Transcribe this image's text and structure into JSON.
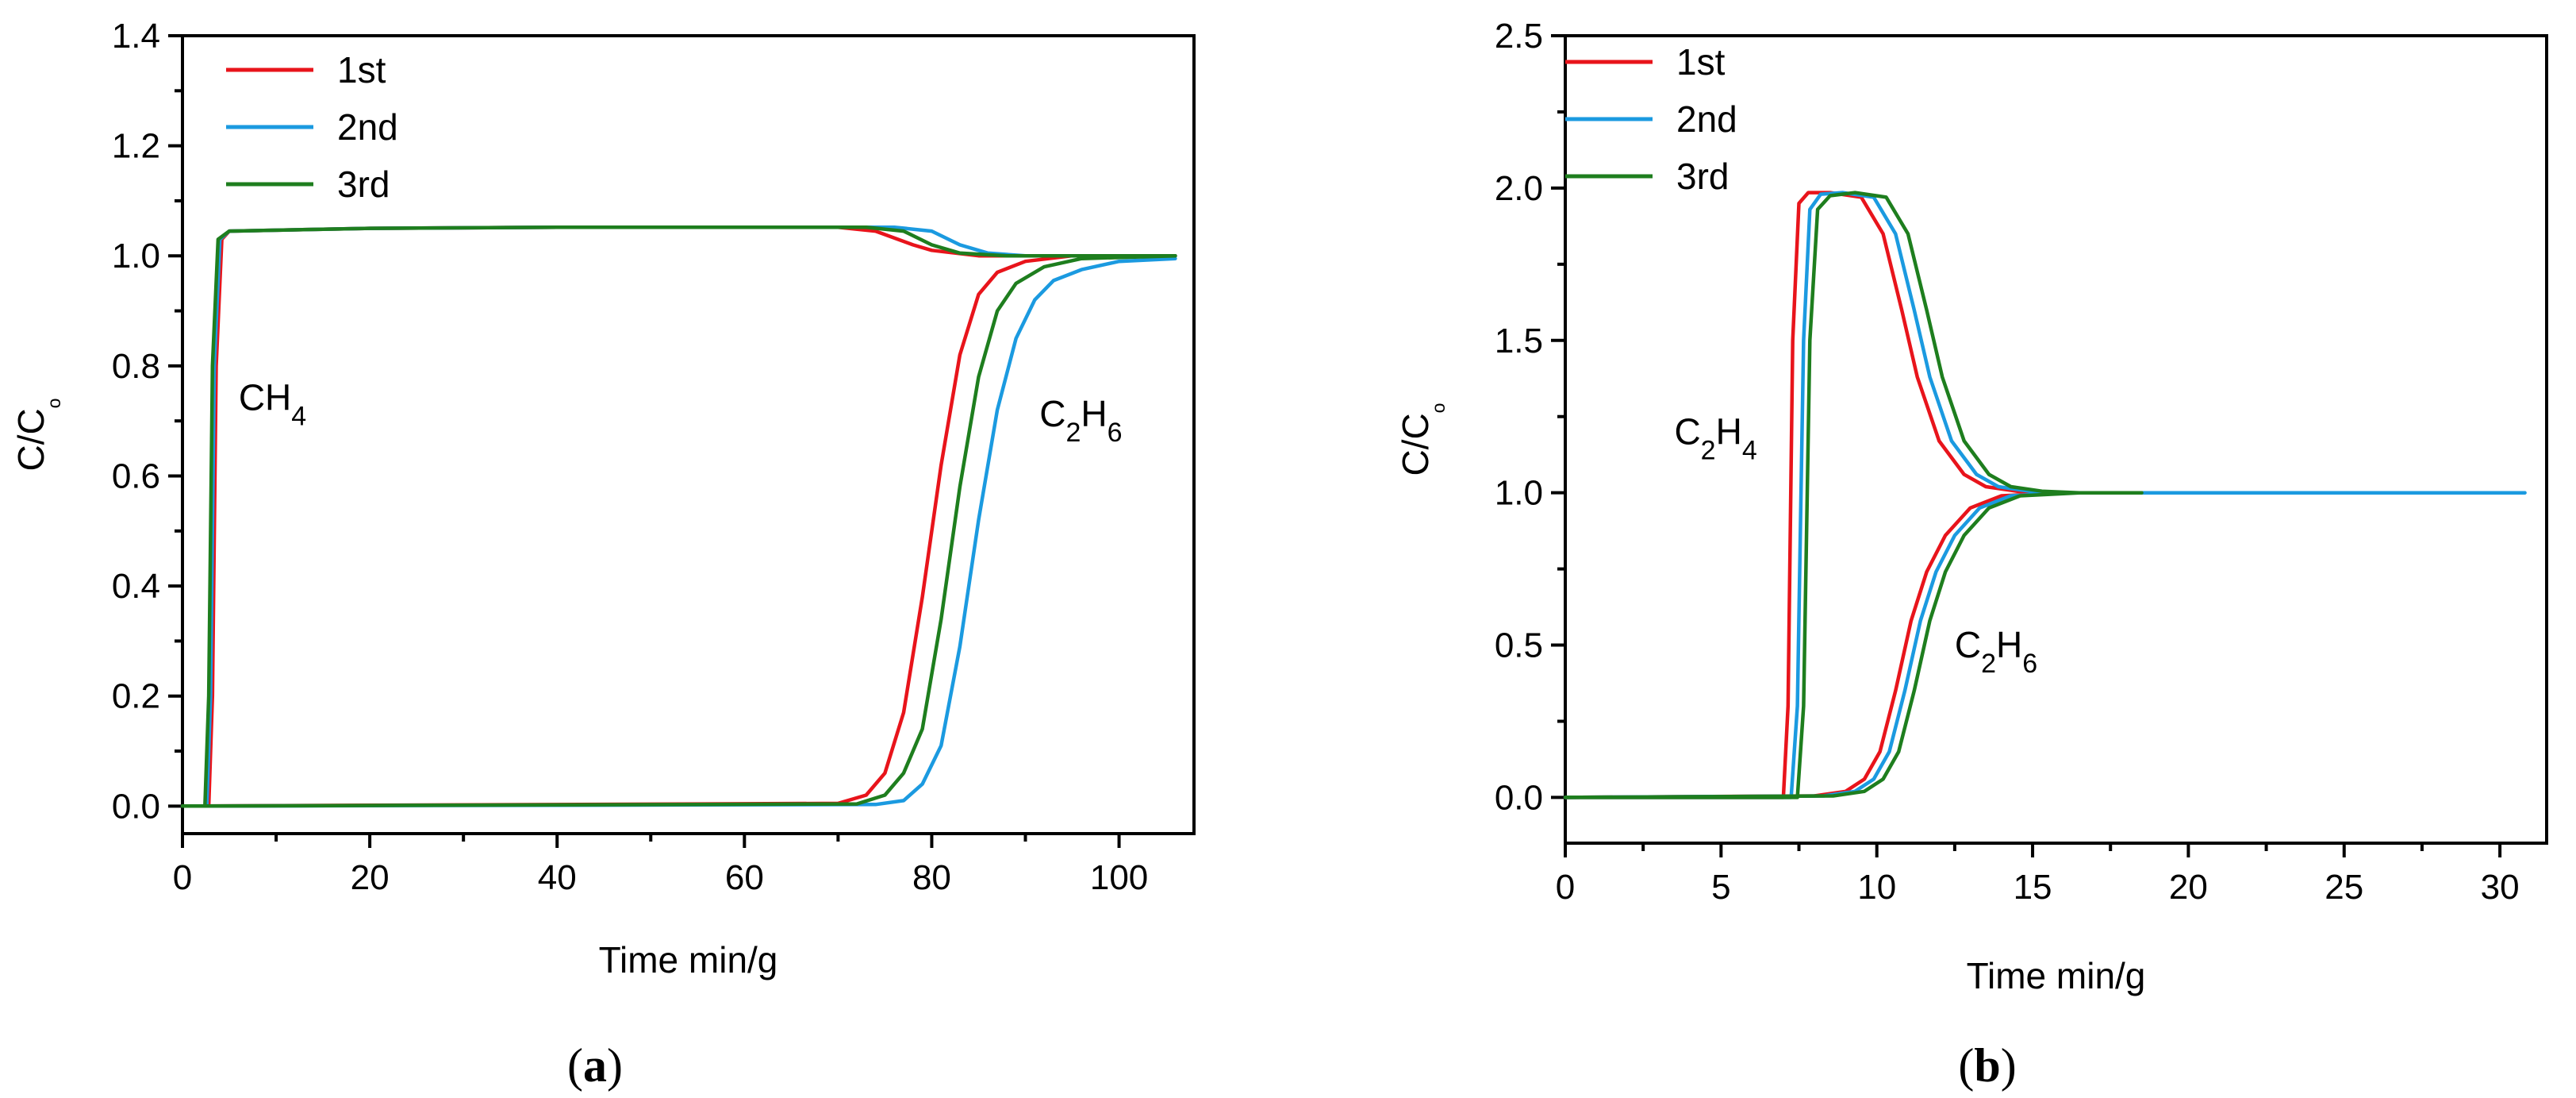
{
  "chart_data": [
    {
      "type": "line",
      "panel_label": "(a)",
      "xlabel": "Time min/g",
      "ylabel": "C/Cₒ",
      "xlim": [
        0,
        108
      ],
      "ylim": [
        -0.05,
        1.4
      ],
      "xticks": [
        0,
        20,
        40,
        60,
        80,
        100
      ],
      "yticks": [
        0.0,
        0.2,
        0.4,
        0.6,
        0.8,
        1.0,
        1.2,
        1.4
      ],
      "legend_position": "top-left",
      "series": [
        {
          "name": "1st",
          "color": "#e8141b",
          "curves": [
            {
              "gas": "CH4",
              "x": [
                0,
                2.8,
                3.2,
                3.6,
                4.2,
                5,
                20,
                40,
                70,
                74,
                78,
                80,
                85,
                90,
                106
              ],
              "y": [
                0,
                0,
                0.2,
                0.8,
                1.03,
                1.045,
                1.05,
                1.052,
                1.052,
                1.045,
                1.02,
                1.01,
                1.0,
                1.0,
                1.0
              ]
            },
            {
              "gas": "C2H6",
              "x": [
                0,
                70,
                73,
                75,
                77,
                79,
                81,
                83,
                85,
                87,
                90,
                95,
                106
              ],
              "y": [
                0,
                0.005,
                0.02,
                0.06,
                0.17,
                0.38,
                0.62,
                0.82,
                0.93,
                0.97,
                0.99,
                1.0,
                1.0
              ]
            }
          ]
        },
        {
          "name": "2nd",
          "color": "#1b9ae0",
          "curves": [
            {
              "gas": "CH4",
              "x": [
                0,
                2.6,
                3.0,
                3.4,
                4.0,
                5,
                20,
                40,
                76,
                80,
                83,
                86,
                90,
                106
              ],
              "y": [
                0,
                0,
                0.2,
                0.8,
                1.03,
                1.045,
                1.05,
                1.052,
                1.052,
                1.045,
                1.02,
                1.005,
                1.0,
                1.0
              ]
            },
            {
              "gas": "C2H6",
              "x": [
                0,
                74,
                77,
                79,
                81,
                83,
                85,
                87,
                89,
                91,
                93,
                96,
                100,
                106
              ],
              "y": [
                0,
                0.003,
                0.01,
                0.04,
                0.11,
                0.29,
                0.52,
                0.72,
                0.85,
                0.92,
                0.955,
                0.975,
                0.99,
                0.995
              ]
            }
          ]
        },
        {
          "name": "3rd",
          "color": "#1e7e1e",
          "curves": [
            {
              "gas": "CH4",
              "x": [
                0,
                2.4,
                2.8,
                3.2,
                3.8,
                5,
                20,
                40,
                73,
                77,
                80,
                83,
                88,
                106
              ],
              "y": [
                0,
                0,
                0.2,
                0.8,
                1.03,
                1.045,
                1.05,
                1.052,
                1.052,
                1.045,
                1.02,
                1.005,
                1.0,
                1.0
              ]
            },
            {
              "gas": "C2H6",
              "x": [
                0,
                72,
                75,
                77,
                79,
                81,
                83,
                85,
                87,
                89,
                92,
                96,
                106
              ],
              "y": [
                0,
                0.004,
                0.02,
                0.06,
                0.14,
                0.34,
                0.58,
                0.78,
                0.9,
                0.95,
                0.98,
                0.995,
                1.0
              ]
            }
          ]
        }
      ],
      "annotations": [
        {
          "text": "CH",
          "sub": "4",
          "sub2": "",
          "x": 6,
          "y": 0.72
        },
        {
          "text": "C",
          "sub": "2",
          "mid": "H",
          "sub2": "6",
          "x": 91.5,
          "y": 0.69
        }
      ]
    },
    {
      "type": "line",
      "panel_label": "(b)",
      "xlabel": "Time min/g",
      "ylabel": "C/Cₒ",
      "xlim": [
        0,
        31.5
      ],
      "ylim": [
        -0.15,
        2.5
      ],
      "xticks": [
        0,
        5,
        10,
        15,
        20,
        25,
        30
      ],
      "yticks": [
        0.0,
        0.5,
        1.0,
        1.5,
        2.0,
        2.5
      ],
      "legend_position": "top-left",
      "series": [
        {
          "name": "1st",
          "color": "#e8141b",
          "curves": [
            {
              "gas": "C2H4",
              "x": [
                0,
                7.0,
                7.15,
                7.3,
                7.5,
                7.8,
                8.5,
                9.5,
                10.2,
                10.8,
                11.3,
                12,
                12.8,
                13.5,
                14.5,
                16
              ],
              "y": [
                0,
                0,
                0.3,
                1.5,
                1.95,
                1.985,
                1.985,
                1.97,
                1.85,
                1.6,
                1.38,
                1.17,
                1.06,
                1.02,
                1.005,
                1.0
              ]
            },
            {
              "gas": "C2H6",
              "x": [
                0,
                8,
                9,
                9.6,
                10.1,
                10.6,
                11.1,
                11.6,
                12.2,
                13,
                14,
                16
              ],
              "y": [
                0,
                0.005,
                0.02,
                0.06,
                0.15,
                0.35,
                0.58,
                0.74,
                0.86,
                0.95,
                0.99,
                1.0
              ]
            }
          ]
        },
        {
          "name": "2nd",
          "color": "#1b9ae0",
          "curves": [
            {
              "gas": "C2H4",
              "x": [
                0,
                7.25,
                7.45,
                7.65,
                7.85,
                8.2,
                8.9,
                9.9,
                10.6,
                11.2,
                11.7,
                12.4,
                13.2,
                13.9,
                14.9,
                16,
                30.8
              ],
              "y": [
                0,
                0,
                0.3,
                1.5,
                1.93,
                1.98,
                1.985,
                1.97,
                1.85,
                1.6,
                1.38,
                1.17,
                1.06,
                1.02,
                1.005,
                1.0,
                1.0
              ]
            },
            {
              "gas": "C2H6",
              "x": [
                0,
                8.3,
                9.3,
                9.9,
                10.4,
                10.9,
                11.4,
                11.9,
                12.5,
                13.3,
                14.3,
                16,
                30.8
              ],
              "y": [
                0,
                0.005,
                0.02,
                0.06,
                0.15,
                0.35,
                0.58,
                0.74,
                0.86,
                0.95,
                0.99,
                1.0,
                1.0
              ]
            }
          ]
        },
        {
          "name": "3rd",
          "color": "#1e7e1e",
          "curves": [
            {
              "gas": "C2H4",
              "x": [
                0,
                7.45,
                7.65,
                7.85,
                8.1,
                8.5,
                9.3,
                10.3,
                11.0,
                11.6,
                12.1,
                12.8,
                13.6,
                14.3,
                15.3,
                16.5,
                18.5
              ],
              "y": [
                0,
                0,
                0.3,
                1.5,
                1.93,
                1.975,
                1.985,
                1.97,
                1.85,
                1.6,
                1.38,
                1.17,
                1.06,
                1.02,
                1.005,
                1.0,
                1.0
              ]
            },
            {
              "gas": "C2H6",
              "x": [
                0,
                8.6,
                9.6,
                10.2,
                10.7,
                11.2,
                11.7,
                12.2,
                12.8,
                13.6,
                14.6,
                16.5,
                18.5
              ],
              "y": [
                0,
                0.005,
                0.02,
                0.06,
                0.15,
                0.35,
                0.58,
                0.74,
                0.86,
                0.95,
                0.99,
                1.0,
                1.0
              ]
            }
          ]
        }
      ],
      "annotations": [
        {
          "text": "C",
          "sub": "2",
          "mid": "H",
          "sub2": "4",
          "x": 3.5,
          "y": 1.16
        },
        {
          "text": "C",
          "sub": "2",
          "mid": "H",
          "sub2": "6",
          "x": 12.5,
          "y": 0.46
        }
      ]
    }
  ]
}
